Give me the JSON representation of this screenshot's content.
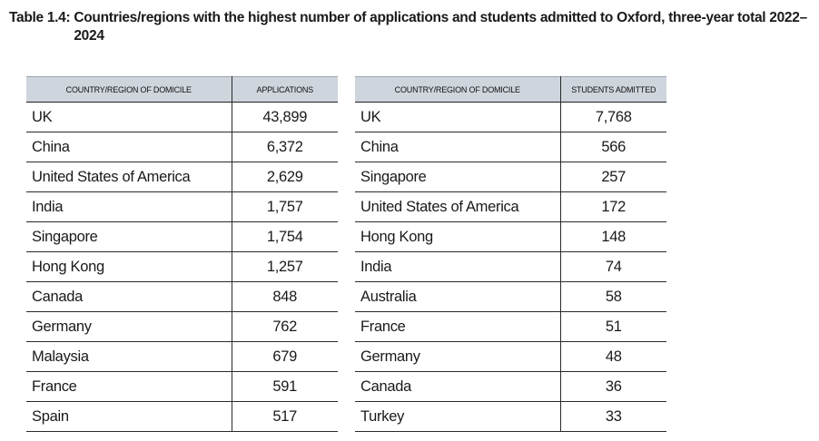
{
  "caption": {
    "label": "Table 1.4:",
    "text": "Countries/regions with the highest number of applications and students admitted to Oxford, three-year total 2022–2024"
  },
  "applications_table": {
    "headers": [
      "COUNTRY/REGION OF DOMICILE",
      "APPLICATIONS"
    ],
    "rows": [
      [
        "UK",
        "43,899"
      ],
      [
        "China",
        "6,372"
      ],
      [
        "United States of America",
        "2,629"
      ],
      [
        "India",
        "1,757"
      ],
      [
        "Singapore",
        "1,754"
      ],
      [
        "Hong Kong",
        "1,257"
      ],
      [
        "Canada",
        "848"
      ],
      [
        "Germany",
        "762"
      ],
      [
        "Malaysia",
        "679"
      ],
      [
        "France",
        "591"
      ],
      [
        "Spain",
        "517"
      ]
    ]
  },
  "admitted_table": {
    "headers": [
      "COUNTRY/REGION OF DOMICILE",
      "STUDENTS ADMITTED"
    ],
    "rows": [
      [
        "UK",
        "7,768"
      ],
      [
        "China",
        "566"
      ],
      [
        "Singapore",
        "257"
      ],
      [
        "United States of America",
        "172"
      ],
      [
        "Hong Kong",
        "148"
      ],
      [
        "India",
        "74"
      ],
      [
        "Australia",
        "58"
      ],
      [
        "France",
        "51"
      ],
      [
        "Germany",
        "48"
      ],
      [
        "Canada",
        "36"
      ],
      [
        "Turkey",
        "33"
      ]
    ]
  }
}
